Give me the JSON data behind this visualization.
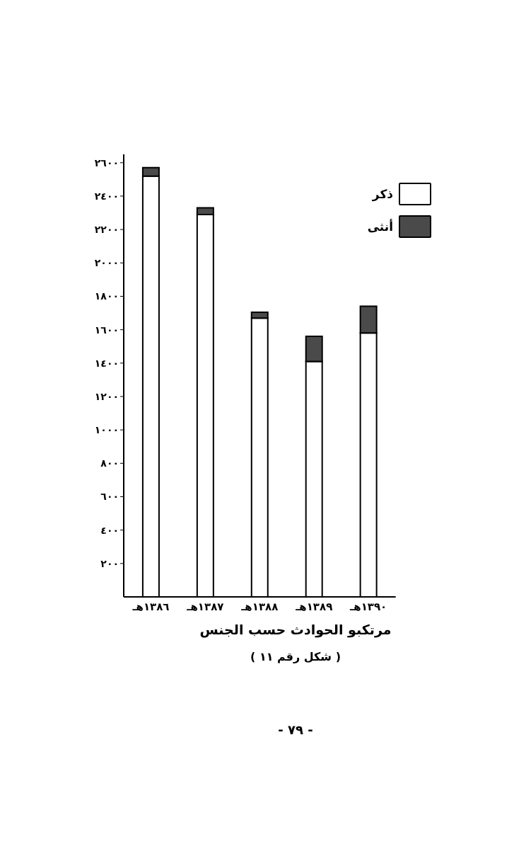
{
  "chart_data": {
    "type": "bar",
    "stacked": true,
    "xlabel": "مرتكبو الحوادث حسب الجنس",
    "categories": [
      "١٣٨٦هـ",
      "١٣٨٧هـ",
      "١٣٨٨هـ",
      "١٣٨٩هـ",
      "١٣٩٠هـ"
    ],
    "series": [
      {
        "name": "ذكر",
        "color": "#ffffff",
        "values": [
          2520,
          2290,
          1670,
          1410,
          1580
        ]
      },
      {
        "name": "أنثى",
        "color": "#4a4a4a",
        "values": [
          50,
          40,
          35,
          150,
          160
        ]
      }
    ],
    "ylim": [
      0,
      2650
    ],
    "yticks": [
      {
        "value": 200,
        "label": "٢٠٠"
      },
      {
        "value": 400,
        "label": "٤٠٠"
      },
      {
        "value": 600,
        "label": "٦٠٠"
      },
      {
        "value": 800,
        "label": "٨٠٠"
      },
      {
        "value": 1000,
        "label": "١٠٠٠"
      },
      {
        "value": 1200,
        "label": "١٢٠٠"
      },
      {
        "value": 1400,
        "label": "١٤٠٠"
      },
      {
        "value": 1600,
        "label": "١٦٠٠"
      },
      {
        "value": 1800,
        "label": "١٨٠٠"
      },
      {
        "value": 2000,
        "label": "٢٠٠٠"
      },
      {
        "value": 2200,
        "label": "٢٢٠٠"
      },
      {
        "value": 2400,
        "label": "٢٤٠٠"
      },
      {
        "value": 2600,
        "label": "٢٦٠٠"
      }
    ],
    "grid": false,
    "legend": "top right",
    "annotations": [
      "( شكل رقم ١١ )",
      "- ٧٩ -"
    ]
  }
}
